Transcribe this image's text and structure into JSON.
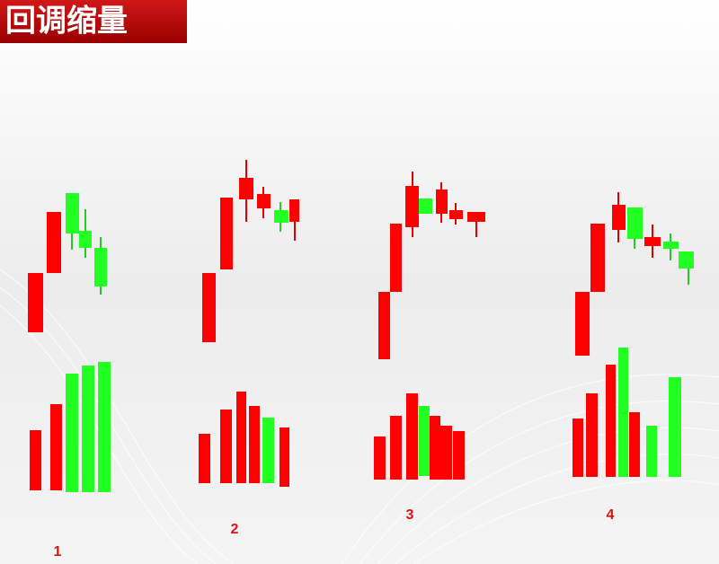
{
  "header": {
    "title": "回调缩量"
  },
  "panels": [
    {
      "label": "1"
    },
    {
      "label": "2"
    },
    {
      "label": "3"
    },
    {
      "label": "4"
    }
  ]
}
